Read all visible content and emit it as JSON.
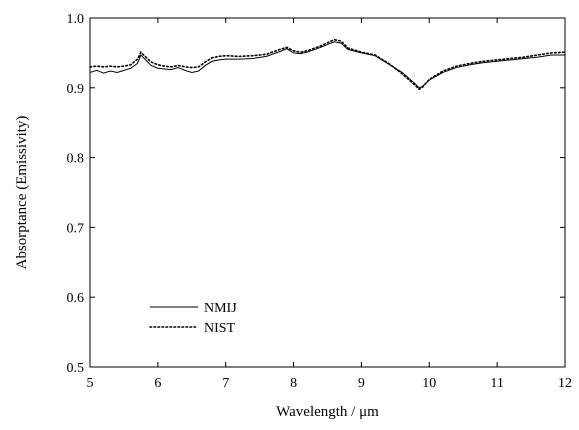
{
  "chart_data": {
    "type": "line",
    "title": "",
    "xlabel": "Wavelength / μm",
    "ylabel": "Absorptance (Emissivity)",
    "xlim": [
      5,
      12
    ],
    "ylim": [
      0.5,
      1.0
    ],
    "xticks": [
      5,
      6,
      7,
      8,
      9,
      10,
      11,
      12
    ],
    "yticks": [
      0.5,
      0.6,
      0.7,
      0.8,
      0.9,
      1.0
    ],
    "xtick_labels": [
      "5",
      "6",
      "7",
      "8",
      "9",
      "10",
      "11",
      "12"
    ],
    "ytick_labels": [
      "0.5",
      "0.6",
      "0.7",
      "0.8",
      "0.9",
      "1.0"
    ],
    "grid": false,
    "legend_position": "lower-left",
    "series": [
      {
        "name": "NMIJ",
        "style": "solid",
        "color": "#000000",
        "points": [
          [
            5.0,
            0.922
          ],
          [
            5.1,
            0.925
          ],
          [
            5.2,
            0.921
          ],
          [
            5.3,
            0.924
          ],
          [
            5.4,
            0.922
          ],
          [
            5.5,
            0.925
          ],
          [
            5.6,
            0.928
          ],
          [
            5.7,
            0.935
          ],
          [
            5.75,
            0.947
          ],
          [
            5.8,
            0.942
          ],
          [
            5.9,
            0.932
          ],
          [
            6.0,
            0.928
          ],
          [
            6.1,
            0.927
          ],
          [
            6.2,
            0.926
          ],
          [
            6.3,
            0.929
          ],
          [
            6.4,
            0.925
          ],
          [
            6.5,
            0.922
          ],
          [
            6.6,
            0.924
          ],
          [
            6.7,
            0.932
          ],
          [
            6.8,
            0.938
          ],
          [
            6.9,
            0.94
          ],
          [
            7.0,
            0.941
          ],
          [
            7.2,
            0.941
          ],
          [
            7.4,
            0.942
          ],
          [
            7.6,
            0.945
          ],
          [
            7.8,
            0.952
          ],
          [
            7.9,
            0.956
          ],
          [
            8.0,
            0.95
          ],
          [
            8.1,
            0.949
          ],
          [
            8.2,
            0.951
          ],
          [
            8.4,
            0.958
          ],
          [
            8.6,
            0.966
          ],
          [
            8.7,
            0.964
          ],
          [
            8.8,
            0.955
          ],
          [
            9.0,
            0.95
          ],
          [
            9.2,
            0.946
          ],
          [
            9.4,
            0.934
          ],
          [
            9.6,
            0.922
          ],
          [
            9.8,
            0.905
          ],
          [
            9.85,
            0.9
          ],
          [
            9.9,
            0.902
          ],
          [
            10.0,
            0.911
          ],
          [
            10.2,
            0.922
          ],
          [
            10.4,
            0.929
          ],
          [
            10.6,
            0.933
          ],
          [
            10.8,
            0.936
          ],
          [
            11.0,
            0.938
          ],
          [
            11.2,
            0.94
          ],
          [
            11.4,
            0.942
          ],
          [
            11.6,
            0.944
          ],
          [
            11.8,
            0.947
          ],
          [
            12.0,
            0.947
          ]
        ]
      },
      {
        "name": "NIST",
        "style": "dotted",
        "color": "#000000",
        "points": [
          [
            5.0,
            0.93
          ],
          [
            5.1,
            0.931
          ],
          [
            5.2,
            0.93
          ],
          [
            5.3,
            0.931
          ],
          [
            5.4,
            0.93
          ],
          [
            5.5,
            0.931
          ],
          [
            5.6,
            0.933
          ],
          [
            5.7,
            0.941
          ],
          [
            5.75,
            0.951
          ],
          [
            5.8,
            0.946
          ],
          [
            5.9,
            0.937
          ],
          [
            6.0,
            0.933
          ],
          [
            6.1,
            0.931
          ],
          [
            6.2,
            0.93
          ],
          [
            6.3,
            0.932
          ],
          [
            6.4,
            0.93
          ],
          [
            6.5,
            0.929
          ],
          [
            6.6,
            0.93
          ],
          [
            6.7,
            0.937
          ],
          [
            6.8,
            0.943
          ],
          [
            6.9,
            0.945
          ],
          [
            7.0,
            0.946
          ],
          [
            7.2,
            0.945
          ],
          [
            7.4,
            0.946
          ],
          [
            7.6,
            0.948
          ],
          [
            7.8,
            0.955
          ],
          [
            7.9,
            0.958
          ],
          [
            8.0,
            0.953
          ],
          [
            8.1,
            0.951
          ],
          [
            8.2,
            0.953
          ],
          [
            8.4,
            0.96
          ],
          [
            8.6,
            0.969
          ],
          [
            8.7,
            0.967
          ],
          [
            8.8,
            0.957
          ],
          [
            9.0,
            0.951
          ],
          [
            9.2,
            0.947
          ],
          [
            9.4,
            0.935
          ],
          [
            9.6,
            0.92
          ],
          [
            9.8,
            0.903
          ],
          [
            9.85,
            0.898
          ],
          [
            9.9,
            0.901
          ],
          [
            10.0,
            0.912
          ],
          [
            10.2,
            0.924
          ],
          [
            10.4,
            0.931
          ],
          [
            10.6,
            0.935
          ],
          [
            10.8,
            0.938
          ],
          [
            11.0,
            0.94
          ],
          [
            11.2,
            0.942
          ],
          [
            11.4,
            0.944
          ],
          [
            11.6,
            0.947
          ],
          [
            11.8,
            0.95
          ],
          [
            12.0,
            0.951
          ]
        ]
      }
    ]
  }
}
